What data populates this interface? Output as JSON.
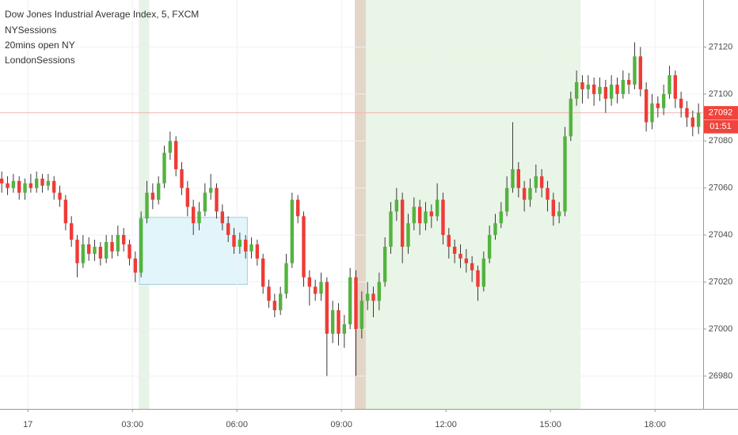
{
  "chart_data": {
    "type": "candlestick",
    "title": "Dow Jones Industrial Average Index, 5, FXCM",
    "legend": [
      "NYSessions",
      "20mins open NY",
      "LondonSessions"
    ],
    "up_color": "#53b33f",
    "down_color": "#ef3b36",
    "wick_color": "#3a3a3a",
    "grid": true,
    "xlim": [
      -48,
      1163
    ],
    "xticks": [
      {
        "value": 0,
        "label": "17"
      },
      {
        "value": 180,
        "label": "03:00"
      },
      {
        "value": 360,
        "label": "06:00"
      },
      {
        "value": 540,
        "label": "09:00"
      },
      {
        "value": 720,
        "label": "12:00"
      },
      {
        "value": 900,
        "label": "15:00"
      },
      {
        "value": 1080,
        "label": "18:00"
      }
    ],
    "ylim": [
      26966,
      27140
    ],
    "yticks": [
      26980,
      27000,
      27020,
      27040,
      27060,
      27080,
      27100,
      27120
    ],
    "shaded_ranges": [
      {
        "x": [
          191,
          209
        ],
        "color": "#e6f3e6"
      },
      {
        "x": [
          563,
          582
        ],
        "color": "#e3d6c8"
      },
      {
        "x": [
          582,
          952
        ],
        "color": "#e9f5e6"
      }
    ],
    "box": {
      "x": [
        192,
        378
      ],
      "y": [
        27019,
        27047.5
      ],
      "color": "#e2f5fa",
      "border": "#9fd0dc"
    },
    "last_price": 27092,
    "last_price_color": "#f0443c",
    "countdown": "01:51",
    "x": [
      -45,
      -35,
      -25,
      -15,
      -5,
      5,
      15,
      25,
      35,
      45,
      55,
      65,
      75,
      85,
      95,
      105,
      115,
      125,
      135,
      145,
      155,
      165,
      175,
      185,
      195,
      205,
      215,
      225,
      235,
      245,
      255,
      265,
      275,
      285,
      295,
      305,
      315,
      325,
      335,
      345,
      355,
      365,
      375,
      385,
      395,
      405,
      415,
      425,
      435,
      445,
      455,
      465,
      475,
      485,
      495,
      505,
      515,
      525,
      535,
      545,
      555,
      565,
      575,
      585,
      595,
      605,
      615,
      625,
      635,
      645,
      655,
      665,
      675,
      685,
      695,
      705,
      715,
      725,
      735,
      745,
      755,
      765,
      775,
      785,
      795,
      805,
      815,
      825,
      835,
      845,
      855,
      865,
      875,
      885,
      895,
      905,
      915,
      925,
      935,
      945,
      955,
      965,
      975,
      985,
      995,
      1005,
      1015,
      1025,
      1035,
      1045,
      1055,
      1065,
      1075,
      1085,
      1095,
      1105,
      1115,
      1125,
      1135,
      1145,
      1155
    ],
    "ohlc": [
      [
        27064,
        27067,
        27058,
        27062
      ],
      [
        27062,
        27065,
        27057,
        27060
      ],
      [
        27060,
        27066,
        27058,
        27063
      ],
      [
        27063,
        27065,
        27055,
        27058
      ],
      [
        27058,
        27064,
        27055,
        27062
      ],
      [
        27062,
        27066,
        27058,
        27060
      ],
      [
        27060,
        27067,
        27058,
        27064
      ],
      [
        27064,
        27066,
        27058,
        27061
      ],
      [
        27061,
        27066,
        27059,
        27063
      ],
      [
        27063,
        27065,
        27055,
        27058
      ],
      [
        27058,
        27061,
        27052,
        27055
      ],
      [
        27055,
        27057,
        27042,
        27045
      ],
      [
        27045,
        27048,
        27035,
        27038
      ],
      [
        27038,
        27040,
        27022,
        27028
      ],
      [
        27028,
        27040,
        27026,
        27036
      ],
      [
        27036,
        27039,
        27029,
        27032
      ],
      [
        27032,
        27038,
        27029,
        27035
      ],
      [
        27035,
        27037,
        27027,
        27030
      ],
      [
        27030,
        27040,
        27028,
        27037
      ],
      [
        27037,
        27040,
        27030,
        27033
      ],
      [
        27033,
        27044,
        27031,
        27040
      ],
      [
        27040,
        27043,
        27033,
        27036
      ],
      [
        27036,
        27038,
        27027,
        27030
      ],
      [
        27030,
        27033,
        27020,
        27024
      ],
      [
        27024,
        27050,
        27022,
        27047
      ],
      [
        27047,
        27063,
        27045,
        27058
      ],
      [
        27058,
        27062,
        27051,
        27055
      ],
      [
        27055,
        27065,
        27053,
        27062
      ],
      [
        27062,
        27078,
        27060,
        27075
      ],
      [
        27075,
        27084,
        27072,
        27080
      ],
      [
        27080,
        27082,
        27065,
        27068
      ],
      [
        27068,
        27071,
        27057,
        27060
      ],
      [
        27060,
        27063,
        27048,
        27052
      ],
      [
        27052,
        27055,
        27040,
        27045
      ],
      [
        27045,
        27054,
        27042,
        27050
      ],
      [
        27050,
        27062,
        27048,
        27058
      ],
      [
        27058,
        27066,
        27055,
        27060
      ],
      [
        27060,
        27062,
        27047,
        27050
      ],
      [
        27050,
        27053,
        27042,
        27045
      ],
      [
        27045,
        27048,
        27037,
        27040
      ],
      [
        27040,
        27043,
        27032,
        27035
      ],
      [
        27035,
        27041,
        27032,
        27038
      ],
      [
        27038,
        27040,
        27030,
        27033
      ],
      [
        27033,
        27039,
        27030,
        27036
      ],
      [
        27036,
        27038,
        27027,
        27030
      ],
      [
        27030,
        27032,
        27015,
        27018
      ],
      [
        27018,
        27021,
        27009,
        27012
      ],
      [
        27012,
        27015,
        27005,
        27008
      ],
      [
        27008,
        27018,
        27006,
        27015
      ],
      [
        27015,
        27032,
        27013,
        27028
      ],
      [
        27028,
        27058,
        27026,
        27055
      ],
      [
        27055,
        27057,
        27045,
        27048
      ],
      [
        27048,
        27050,
        27018,
        27022
      ],
      [
        27022,
        27025,
        27010,
        27018
      ],
      [
        27018,
        27021,
        27012,
        27015
      ],
      [
        27015,
        27024,
        27012,
        27020
      ],
      [
        27020,
        27022,
        26980,
        26998
      ],
      [
        26998,
        27012,
        26994,
        27008
      ],
      [
        27008,
        27011,
        26993,
        26998
      ],
      [
        26998,
        27006,
        26992,
        27002
      ],
      [
        27002,
        27026,
        27000,
        27022
      ],
      [
        27022,
        27025,
        26980,
        27000
      ],
      [
        27000,
        27016,
        26996,
        27012
      ],
      [
        27012,
        27020,
        27008,
        27015
      ],
      [
        27015,
        27018,
        27005,
        27012
      ],
      [
        27012,
        27024,
        27008,
        27020
      ],
      [
        27020,
        27039,
        27018,
        27035
      ],
      [
        27035,
        27054,
        27032,
        27050
      ],
      [
        27050,
        27060,
        27046,
        27055
      ],
      [
        27055,
        27058,
        27028,
        27035
      ],
      [
        27035,
        27049,
        27032,
        27045
      ],
      [
        27045,
        27056,
        27042,
        27052
      ],
      [
        27052,
        27055,
        27040,
        27045
      ],
      [
        27045,
        27054,
        27042,
        27050
      ],
      [
        27050,
        27053,
        27043,
        27048
      ],
      [
        27048,
        27062,
        27046,
        27055
      ],
      [
        27055,
        27058,
        27036,
        27040
      ],
      [
        27040,
        27043,
        27030,
        27035
      ],
      [
        27035,
        27038,
        27028,
        27032
      ],
      [
        27032,
        27036,
        27026,
        27030
      ],
      [
        27030,
        27034,
        27024,
        27028
      ],
      [
        27028,
        27031,
        27020,
        27025
      ],
      [
        27025,
        27027,
        27012,
        27018
      ],
      [
        27018,
        27033,
        27016,
        27030
      ],
      [
        27030,
        27044,
        27028,
        27040
      ],
      [
        27040,
        27049,
        27038,
        27045
      ],
      [
        27045,
        27054,
        27043,
        27050
      ],
      [
        27050,
        27065,
        27048,
        27060
      ],
      [
        27060,
        27088,
        27058,
        27068
      ],
      [
        27068,
        27071,
        27056,
        27060
      ],
      [
        27060,
        27063,
        27050,
        27055
      ],
      [
        27055,
        27064,
        27052,
        27060
      ],
      [
        27060,
        27070,
        27058,
        27065
      ],
      [
        27065,
        27068,
        27056,
        27060
      ],
      [
        27060,
        27063,
        27050,
        27055
      ],
      [
        27055,
        27058,
        27044,
        27048
      ],
      [
        27048,
        27054,
        27045,
        27050
      ],
      [
        27050,
        27086,
        27048,
        27082
      ],
      [
        27082,
        27101,
        27080,
        27098
      ],
      [
        27098,
        27110,
        27095,
        27105
      ],
      [
        27105,
        27108,
        27096,
        27102
      ],
      [
        27102,
        27108,
        27098,
        27104
      ],
      [
        27104,
        27107,
        27095,
        27100
      ],
      [
        27100,
        27107,
        27097,
        27103
      ],
      [
        27103,
        27106,
        27092,
        27098
      ],
      [
        27098,
        27108,
        27095,
        27104
      ],
      [
        27104,
        27107,
        27096,
        27100
      ],
      [
        27100,
        27110,
        27098,
        27106
      ],
      [
        27106,
        27109,
        27100,
        27104
      ],
      [
        27104,
        27122,
        27102,
        27116
      ],
      [
        27116,
        27120,
        27099,
        27102
      ],
      [
        27102,
        27105,
        27084,
        27088
      ],
      [
        27088,
        27100,
        27085,
        27096
      ],
      [
        27096,
        27099,
        27090,
        27094
      ],
      [
        27094,
        27104,
        27091,
        27100
      ],
      [
        27100,
        27112,
        27098,
        27108
      ],
      [
        27108,
        27110,
        27094,
        27098
      ],
      [
        27098,
        27101,
        27090,
        27094
      ],
      [
        27094,
        27097,
        27086,
        27090
      ],
      [
        27090,
        27093,
        27082,
        27086
      ],
      [
        27086,
        27096,
        27083,
        27092
      ]
    ]
  }
}
